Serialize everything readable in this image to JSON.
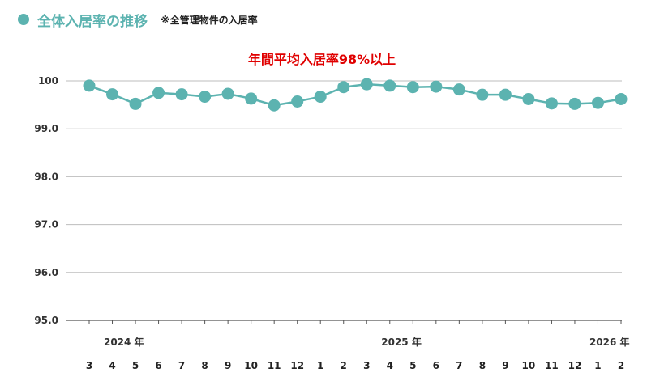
{
  "header": {
    "title": "全体入居率の推移",
    "note": "※全管理物件の入居率"
  },
  "colors": {
    "accent": "#5cb3b0",
    "annotation": "#e00000",
    "grid": "#bdbdbd"
  },
  "chart_data": {
    "type": "line",
    "title": "",
    "annotation": "年間平均入居率98%以上",
    "ylim": [
      95.0,
      100
    ],
    "yticks": [
      "100",
      "99.0",
      "98.0",
      "97.0",
      "96.0",
      "95.0"
    ],
    "grid": true,
    "categories": [
      "3",
      "4",
      "5",
      "6",
      "7",
      "8",
      "9",
      "10",
      "11",
      "12",
      "1",
      "2",
      "3",
      "4",
      "5",
      "6",
      "7",
      "8",
      "9",
      "10",
      "11",
      "12",
      "1",
      "2"
    ],
    "year_labels": [
      {
        "label": "2024 年",
        "index": 1.5
      },
      {
        "label": "2025 年",
        "index": 13.5
      },
      {
        "label": "2026 年",
        "index": 22.5
      }
    ],
    "series": [
      {
        "values": [
          99.9,
          99.72,
          99.52,
          99.75,
          99.72,
          99.67,
          99.73,
          99.63,
          99.49,
          99.57,
          99.67,
          99.87,
          99.93,
          99.9,
          99.87,
          99.88,
          99.82,
          99.71,
          99.71,
          99.62,
          99.53,
          99.52,
          99.54,
          99.62
        ]
      }
    ]
  }
}
